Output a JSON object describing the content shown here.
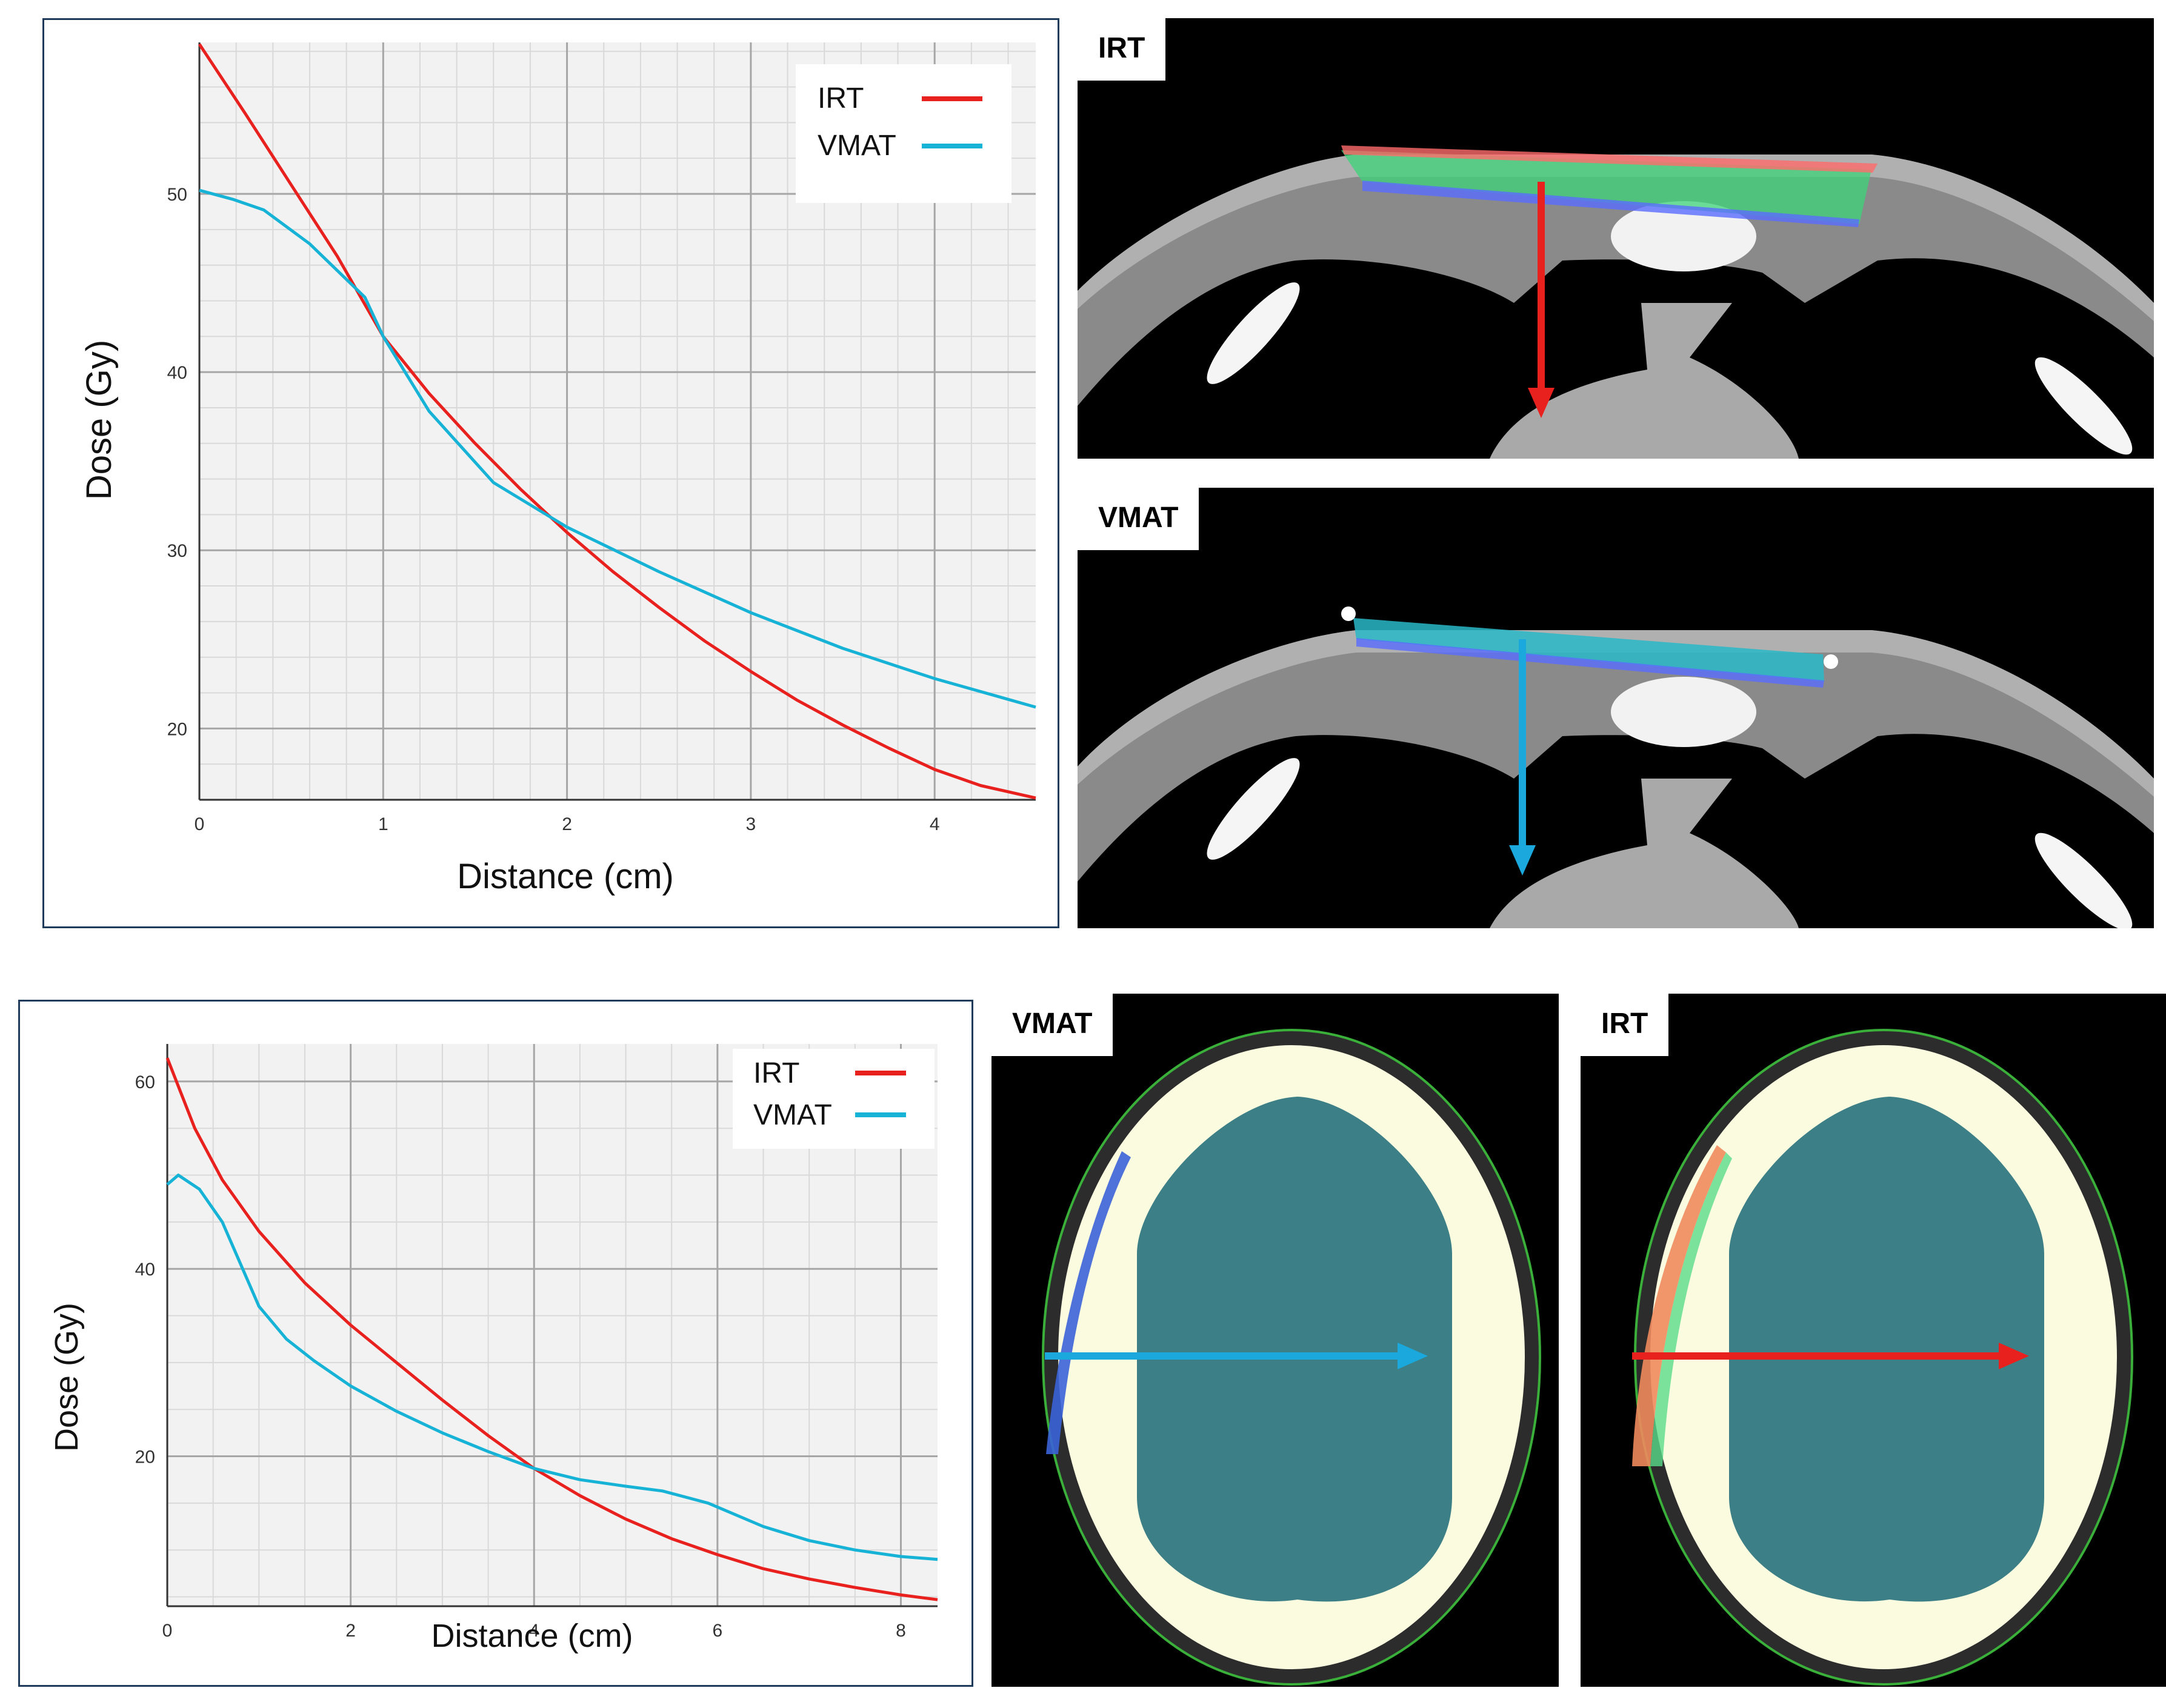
{
  "chart_data": [
    {
      "type": "line",
      "name": "chest-dose-profile",
      "xlabel": "Distance (cm)",
      "ylabel": "Dose (Gy)",
      "xlim": [
        0,
        4.55
      ],
      "ylim": [
        16,
        58.5
      ],
      "xticks": [
        0,
        1,
        2,
        3,
        4
      ],
      "yticks": [
        20,
        30,
        40,
        50
      ],
      "grid": true,
      "legend": "top-right",
      "series": [
        {
          "name": "IRT",
          "color": "#e8211e",
          "x": [
            0,
            0.25,
            0.5,
            0.75,
            1,
            1.25,
            1.5,
            1.75,
            2,
            2.25,
            2.5,
            2.75,
            3,
            3.25,
            3.5,
            3.75,
            4,
            4.25,
            4.55
          ],
          "y": [
            58.4,
            54.5,
            50.5,
            46.5,
            42.0,
            38.8,
            36.0,
            33.4,
            31.0,
            28.8,
            26.8,
            24.9,
            23.2,
            21.6,
            20.2,
            18.9,
            17.7,
            16.8,
            16.1
          ]
        },
        {
          "name": "VMAT",
          "color": "#17b3d6",
          "x": [
            0,
            0.18,
            0.35,
            0.6,
            0.9,
            1.0,
            1.25,
            1.6,
            2.0,
            2.5,
            3.0,
            3.5,
            4.0,
            4.55
          ],
          "y": [
            50.2,
            49.7,
            49.1,
            47.2,
            44.2,
            42.0,
            37.8,
            33.8,
            31.3,
            28.8,
            26.5,
            24.5,
            22.8,
            21.2
          ]
        }
      ]
    },
    {
      "type": "line",
      "name": "head-dose-profile",
      "xlabel": "Distance (cm)",
      "ylabel": "Dose (Gy)",
      "xlim": [
        0,
        8.4
      ],
      "ylim": [
        4,
        64
      ],
      "xticks": [
        0,
        2,
        4,
        6,
        8
      ],
      "yticks": [
        20,
        40,
        60
      ],
      "grid": true,
      "legend": "top-right",
      "series": [
        {
          "name": "IRT",
          "color": "#e8211e",
          "x": [
            0,
            0.3,
            0.6,
            1.0,
            1.5,
            2.0,
            2.5,
            3.0,
            3.5,
            4.0,
            4.5,
            5.0,
            5.5,
            6.0,
            6.5,
            7.0,
            7.5,
            8.0,
            8.4
          ],
          "y": [
            62.5,
            55.0,
            49.5,
            44.0,
            38.5,
            34.0,
            30.0,
            26.0,
            22.2,
            18.7,
            15.8,
            13.3,
            11.2,
            9.5,
            8.0,
            6.9,
            6.0,
            5.2,
            4.7
          ]
        },
        {
          "name": "VMAT",
          "color": "#17b3d6",
          "x": [
            0,
            0.12,
            0.35,
            0.6,
            1.0,
            1.3,
            1.6,
            2.0,
            2.5,
            3.0,
            3.5,
            4.0,
            4.5,
            5.0,
            5.4,
            5.9,
            6.5,
            7.0,
            7.5,
            8.0,
            8.4
          ],
          "y": [
            49.0,
            50.0,
            48.5,
            45.0,
            36.0,
            32.5,
            30.2,
            27.5,
            24.8,
            22.5,
            20.5,
            18.7,
            17.5,
            16.8,
            16.3,
            15.0,
            12.5,
            11.0,
            10.0,
            9.3,
            9.0
          ]
        }
      ]
    }
  ],
  "images": {
    "chest_irt_label": "IRT",
    "chest_vmat_label": "VMAT",
    "head_vmat_label": "VMAT",
    "head_irt_label": "IRT"
  }
}
